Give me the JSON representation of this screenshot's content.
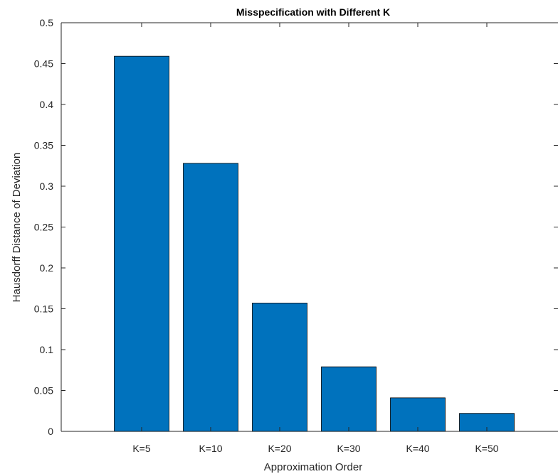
{
  "chart_data": {
    "type": "bar",
    "title": "Misspecification with Different K",
    "xlabel": "Approximation Order",
    "ylabel": "Hausdorff Distance of Deviation",
    "categories": [
      "K=5",
      "K=10",
      "K=20",
      "K=30",
      "K=40",
      "K=50"
    ],
    "values": [
      0.459,
      0.328,
      0.157,
      0.079,
      0.041,
      0.022
    ],
    "ylim": [
      0,
      0.5
    ],
    "yticks": [
      "0",
      "0.05",
      "0.1",
      "0.15",
      "0.2",
      "0.25",
      "0.3",
      "0.35",
      "0.4",
      "0.45",
      "0.5"
    ],
    "grid": false,
    "bar_color": "#0072BD",
    "bar_edge_color": "#000000"
  }
}
